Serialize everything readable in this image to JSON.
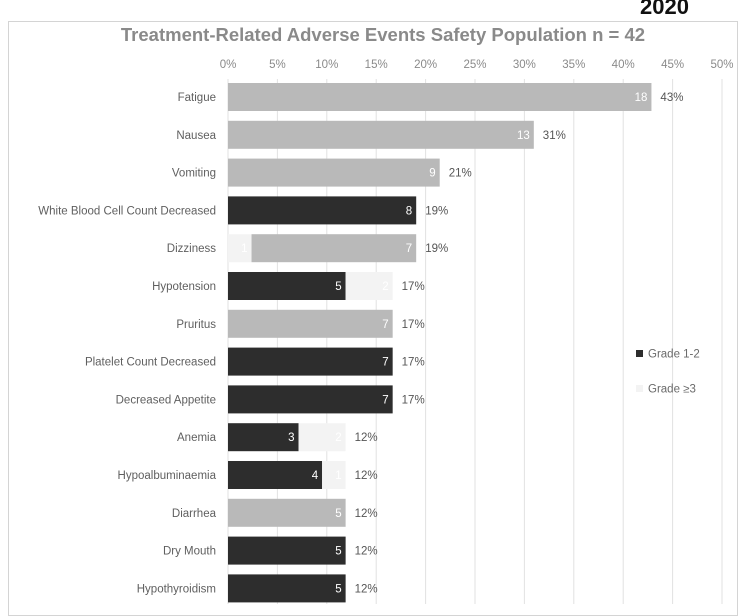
{
  "corner_label": "2020",
  "chart_data": {
    "type": "bar",
    "orientation": "horizontal",
    "stacked": true,
    "title": "Treatment-Related Adverse Events Safety Population n = 42",
    "xlabel": "",
    "ylabel": "",
    "xlim": [
      0,
      50
    ],
    "x_ticks": [
      "0%",
      "5%",
      "10%",
      "15%",
      "20%",
      "25%",
      "30%",
      "35%",
      "40%",
      "45%",
      "50%"
    ],
    "grid": true,
    "legend_position": "right",
    "categories": [
      "Fatigue",
      "Nausea",
      "Vomiting",
      "White Blood Cell Count Decreased",
      "Dizziness",
      "Hypotension",
      "Pruritus",
      "Platelet Count Decreased",
      "Decreased Appetite",
      "Anemia",
      "Hypoalbuminaemia",
      "Diarrhea",
      "Dry Mouth",
      "Hypothyroidism"
    ],
    "series": [
      {
        "name": "Grade 1-2",
        "color": "#2d2d2d",
        "counts": [
          0,
          0,
          0,
          8,
          0,
          5,
          0,
          7,
          7,
          3,
          4,
          0,
          5,
          5
        ],
        "labels": [
          "",
          "",
          "",
          "8",
          "",
          "5",
          "",
          "7",
          "7",
          "3",
          "4",
          "",
          "5",
          "5"
        ]
      },
      {
        "name": "Grade ≥3",
        "color": "#f3f3f3",
        "counts": [
          0,
          0,
          0,
          0,
          1,
          2,
          0,
          0,
          0,
          2,
          1,
          0,
          0,
          0
        ],
        "labels": [
          "",
          "",
          "",
          "",
          "1",
          "2",
          "",
          "",
          "",
          "2",
          "1",
          "",
          "",
          ""
        ]
      },
      {
        "name": "",
        "color": "#b9b9b9",
        "counts": [
          18,
          13,
          9,
          0,
          7,
          0,
          7,
          0,
          0,
          0,
          0,
          5,
          0,
          0
        ],
        "labels": [
          "18",
          "13",
          "9",
          "",
          "7",
          "",
          "7",
          "",
          "",
          "",
          "",
          "5",
          "",
          ""
        ]
      }
    ],
    "total_percent_labels": [
      "43%",
      "31%",
      "21%",
      "19%",
      "19%",
      "17%",
      "17%",
      "17%",
      "17%",
      "12%",
      "12%",
      "12%",
      "12%",
      "12%"
    ],
    "population_n": 42
  }
}
